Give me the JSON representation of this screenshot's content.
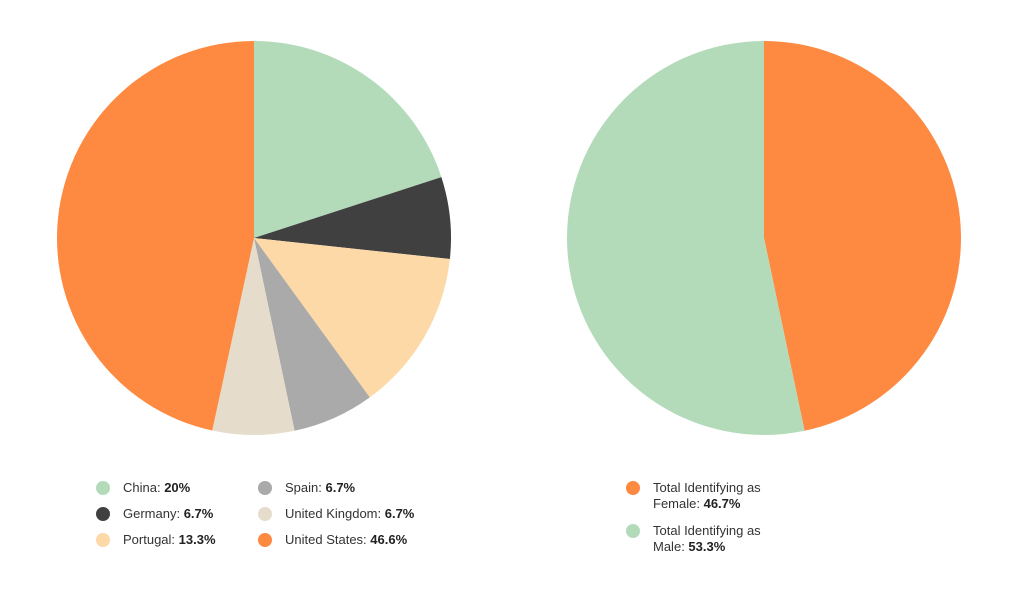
{
  "chart_data": [
    {
      "type": "pie",
      "title": "",
      "slices": [
        {
          "label": "China",
          "value": 20,
          "value_label": "20%",
          "color": "#b3dbba"
        },
        {
          "label": "Germany",
          "value": 6.7,
          "value_label": "6.7%",
          "color": "#404040"
        },
        {
          "label": "Portugal",
          "value": 13.3,
          "value_label": "13.3%",
          "color": "#fed9a8"
        },
        {
          "label": "Spain",
          "value": 6.7,
          "value_label": "6.7%",
          "color": "#aaaaaa"
        },
        {
          "label": "United Kingdom",
          "value": 6.7,
          "value_label": "6.7%",
          "color": "#e6dccb"
        },
        {
          "label": "United States",
          "value": 46.6,
          "value_label": "46.6%",
          "color": "#fe8a42"
        }
      ],
      "legend_placement": "bottom"
    },
    {
      "type": "pie",
      "title": "",
      "slices": [
        {
          "label": "Total Identifying as Female",
          "value": 46.7,
          "value_label": "46.7%",
          "color": "#fe8a42"
        },
        {
          "label": "Total Identifying as Male",
          "value": 53.3,
          "value_label": "53.3%",
          "color": "#b3dbba"
        }
      ],
      "legend_placement": "bottom"
    }
  ]
}
